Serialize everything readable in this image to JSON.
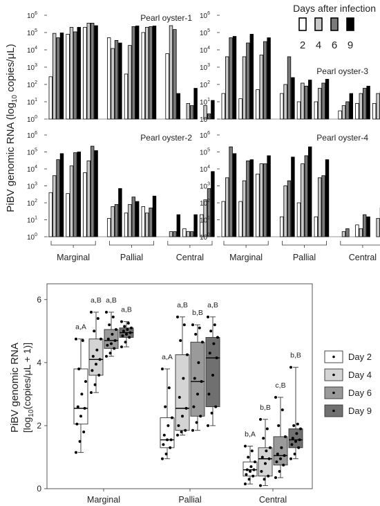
{
  "top": {
    "y_label": "PiBV genomic RNA (log10 copies/μL)",
    "legend_title": "Days after infection",
    "legend_days": [
      "2",
      "4",
      "6",
      "9"
    ],
    "colors": [
      "#ffffff",
      "#c8c8c8",
      "#7a7a7a",
      "#000000"
    ],
    "y_ticks": [
      "0",
      "1",
      "2",
      "3",
      "4",
      "5",
      "6"
    ],
    "group_labels": [
      "Marginal",
      "Pallial",
      "Central"
    ]
  },
  "bottom": {
    "y_label_line1": "PiBV genomic RNA",
    "y_label_line2": "[log10(copies/μL + 1)]",
    "y_ticks": [
      "0",
      "2",
      "4",
      "6"
    ],
    "legend": [
      "Day 2",
      "Day 4",
      "Day 6",
      "Day 9"
    ],
    "colors": [
      "#ffffff",
      "#d4d4d4",
      "#9a9a9a",
      "#707070"
    ],
    "group_labels": [
      "Marginal",
      "Pallial",
      "Central"
    ]
  },
  "chart_data": [
    {
      "type": "bar",
      "title": "Pearl oyster-1",
      "scale": "log10",
      "ylim": [
        1,
        1000000
      ],
      "groups": [
        "Marginal",
        "Pallial",
        "Central"
      ],
      "series": [
        {
          "name": "2",
          "values": [
            280,
            80000,
            200000,
            50000,
            400,
            100000,
            6000,
            0,
            1
          ]
        },
        {
          "name": "4",
          "values": [
            90000,
            200000,
            350000,
            12000,
            18000,
            200000,
            250000,
            8,
            6
          ]
        },
        {
          "name": "6",
          "values": [
            50000,
            110000,
            350000,
            35000,
            220000,
            220000,
            150000,
            6,
            2
          ]
        },
        {
          "name": "9",
          "values": [
            95000,
            200000,
            250000,
            25000,
            240000,
            240000,
            30,
            60,
            12
          ]
        }
      ]
    },
    {
      "type": "bar",
      "title": "Pearl oyster-2",
      "scale": "log10",
      "ylim": [
        1,
        1000000
      ],
      "groups": [
        "Marginal",
        "Pallial",
        "Central"
      ],
      "series": [
        {
          "name": "2",
          "values": [
            400,
            350,
            6000,
            12,
            25,
            60,
            1,
            3,
            20
          ]
        },
        {
          "name": "4",
          "values": [
            4000,
            15000,
            30000,
            60,
            80,
            25,
            2,
            2,
            150
          ]
        },
        {
          "name": "6",
          "values": [
            35000,
            90000,
            220000,
            80,
            220,
            50,
            2,
            2,
            700
          ]
        },
        {
          "name": "9",
          "values": [
            80000,
            100000,
            120000,
            700,
            120,
            250,
            20,
            20,
            7000
          ]
        }
      ]
    },
    {
      "type": "bar",
      "title": "Pearl oyster-3",
      "scale": "log10",
      "ylim": [
        1,
        1000000
      ],
      "groups": [
        "Marginal",
        "Pallial",
        "Central"
      ],
      "series": [
        {
          "name": "2",
          "values": [
            30,
            15,
            50,
            30,
            10,
            10,
            3,
            8,
            8
          ]
        },
        {
          "name": "4",
          "values": [
            4000,
            4000,
            5000,
            100,
            120,
            60,
            6,
            30,
            30
          ]
        },
        {
          "name": "6",
          "values": [
            50000,
            25000,
            30000,
            4000,
            80,
            120,
            10,
            60,
            40
          ]
        },
        {
          "name": "9",
          "values": [
            60000,
            80000,
            50000,
            250,
            180,
            200,
            30,
            80,
            60
          ]
        }
      ]
    },
    {
      "type": "bar",
      "title": "Pearl oyster-4",
      "scale": "log10",
      "ylim": [
        1,
        1000000
      ],
      "groups": [
        "Marginal",
        "Pallial",
        "Central"
      ],
      "series": [
        {
          "name": "2",
          "values": [
            120,
            120,
            5000,
            15,
            100,
            15,
            1,
            5,
            1
          ]
        },
        {
          "name": "4",
          "values": [
            3000,
            2000,
            20000,
            1000,
            20000,
            3000,
            2,
            3,
            12
          ]
        },
        {
          "name": "6",
          "values": [
            200000,
            30000,
            20000,
            2000,
            60000,
            4000,
            3,
            20,
            50
          ]
        },
        {
          "name": "9",
          "values": [
            80000,
            35000,
            60000,
            50000,
            200000,
            35000,
            1,
            15,
            80
          ]
        }
      ]
    },
    {
      "type": "box",
      "xlabel": "",
      "ylabel": "PiBV genomic RNA [log10(copies/μL + 1)]",
      "ylim": [
        0,
        6.5
      ],
      "categories": [
        "Marginal",
        "Pallial",
        "Central"
      ],
      "series": [
        {
          "name": "Day 2",
          "boxes": [
            {
              "q1": 2.05,
              "median": 2.55,
              "q3": 3.8,
              "min": 1.15,
              "max": 4.75,
              "letter": "a,A",
              "points": [
                1.15,
                1.5,
                1.8,
                2.05,
                2.3,
                2.55,
                2.6,
                3.0,
                3.4,
                3.8,
                4.7,
                4.75
              ]
            },
            {
              "q1": 1.3,
              "median": 1.55,
              "q3": 2.25,
              "min": 0.95,
              "max": 3.8,
              "letter": "a,A",
              "points": [
                0.95,
                1.1,
                1.3,
                1.4,
                1.55,
                1.55,
                1.7,
                2.0,
                2.25,
                2.6,
                3.2,
                3.8
              ]
            },
            {
              "q1": 0.4,
              "median": 0.6,
              "q3": 0.85,
              "min": 0.15,
              "max": 1.35,
              "letter": "b,A",
              "points": [
                0.15,
                0.3,
                0.4,
                0.45,
                0.55,
                0.6,
                0.6,
                0.7,
                0.85,
                1.0,
                1.2,
                1.35
              ]
            }
          ]
        },
        {
          "name": "Day 4",
          "boxes": [
            {
              "q1": 3.6,
              "median": 4.1,
              "q3": 4.75,
              "min": 3.05,
              "max": 5.6,
              "letter": "a,B",
              "points": [
                3.05,
                3.3,
                3.6,
                3.75,
                3.95,
                4.1,
                4.2,
                4.4,
                4.75,
                5.0,
                5.4,
                5.6
              ]
            },
            {
              "q1": 1.85,
              "median": 2.55,
              "q3": 4.25,
              "min": 1.7,
              "max": 5.45,
              "letter": "a,B",
              "points": [
                1.7,
                1.8,
                1.85,
                2.0,
                2.3,
                2.55,
                2.9,
                3.5,
                4.25,
                4.7,
                5.2,
                5.45
              ]
            },
            {
              "q1": 0.4,
              "median": 0.95,
              "q3": 1.3,
              "min": 0.1,
              "max": 2.2,
              "letter": "b,B",
              "points": [
                0.1,
                0.3,
                0.4,
                0.55,
                0.8,
                0.95,
                1.0,
                1.2,
                1.3,
                1.6,
                1.9,
                2.2
              ]
            }
          ]
        },
        {
          "name": "Day 6",
          "boxes": [
            {
              "q1": 4.45,
              "median": 4.7,
              "q3": 5.05,
              "min": 4.2,
              "max": 5.6,
              "letter": "a,B",
              "points": [
                4.2,
                4.3,
                4.45,
                4.55,
                4.6,
                4.7,
                4.75,
                4.9,
                5.05,
                5.2,
                5.45,
                5.6
              ]
            },
            {
              "q1": 2.3,
              "median": 3.4,
              "q3": 4.65,
              "min": 1.85,
              "max": 5.2,
              "letter": "b,B",
              "points": [
                1.85,
                2.1,
                2.3,
                2.6,
                3.0,
                3.4,
                3.5,
                4.0,
                4.65,
                4.9,
                5.1,
                5.2
              ]
            },
            {
              "q1": 0.75,
              "median": 1.05,
              "q3": 1.65,
              "min": 0.35,
              "max": 2.9,
              "letter": "c,B",
              "points": [
                0.35,
                0.55,
                0.75,
                0.85,
                0.95,
                1.05,
                1.1,
                1.3,
                1.65,
                2.0,
                2.5,
                2.9
              ]
            }
          ]
        },
        {
          "name": "Day 9",
          "boxes": [
            {
              "q1": 4.8,
              "median": 4.95,
              "q3": 5.1,
              "min": 4.5,
              "max": 5.3,
              "letter": "a,B",
              "points": [
                4.5,
                4.65,
                4.8,
                4.85,
                4.9,
                4.95,
                5.0,
                5.05,
                5.1,
                5.15,
                5.25,
                5.3
              ]
            },
            {
              "q1": 2.6,
              "median": 4.15,
              "q3": 4.8,
              "min": 2.0,
              "max": 5.45,
              "letter": "a,B",
              "points": [
                2.0,
                2.4,
                2.6,
                3.0,
                3.6,
                4.15,
                4.3,
                4.6,
                4.8,
                5.0,
                5.2,
                5.45
              ]
            },
            {
              "q1": 1.3,
              "median": 1.55,
              "q3": 1.9,
              "min": 0.95,
              "max": 3.85,
              "letter": "b,B",
              "points": [
                0.95,
                1.1,
                1.3,
                1.4,
                1.5,
                1.55,
                1.6,
                1.75,
                1.9,
                2.0,
                2.05,
                3.85
              ]
            }
          ]
        }
      ]
    }
  ]
}
